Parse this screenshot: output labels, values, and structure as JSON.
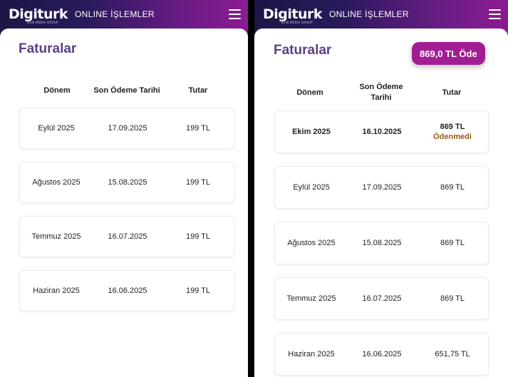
{
  "header": {
    "logo": "Digiturk",
    "logo_sub": "beIN MEDIA GROUP",
    "title": "ONLINE İŞLEMLER"
  },
  "left": {
    "page_title": "Faturalar",
    "columns": [
      "Dönem",
      "Son Ödeme Tarihi",
      "Tutar"
    ],
    "rows": [
      {
        "period": "Eylül 2025",
        "due": "17.09.2025",
        "amount": "199 TL"
      },
      {
        "period": "Ağustos 2025",
        "due": "15.08.2025",
        "amount": "199 TL"
      },
      {
        "period": "Temmuz 2025",
        "due": "16.07.2025",
        "amount": "199 TL"
      },
      {
        "period": "Haziran 2025",
        "due": "16.06.2025",
        "amount": "199 TL"
      }
    ]
  },
  "right": {
    "page_title": "Faturalar",
    "pay_button": "869,0 TL Öde",
    "columns": [
      "Dönem",
      "Son Ödeme Tarihi",
      "Tutar"
    ],
    "rows": [
      {
        "period": "Ekim 2025",
        "due": "16.10.2025",
        "amount": "869 TL",
        "status": "Ödenmedi"
      },
      {
        "period": "Eylül 2025",
        "due": "17.09.2025",
        "amount": "869 TL"
      },
      {
        "period": "Ağustos 2025",
        "due": "15.08.2025",
        "amount": "869 TL"
      },
      {
        "period": "Temmuz 2025",
        "due": "16.07.2025",
        "amount": "869 TL"
      },
      {
        "period": "Haziran 2025",
        "due": "16.06.2025",
        "amount": "651,75 TL"
      }
    ]
  },
  "colors": {
    "title": "#5b3f86",
    "pay_button": "#a21d94",
    "unpaid_status": "#9b5a12",
    "header_gradient_start": "#1b1746",
    "header_gradient_end": "#8d1b93"
  }
}
